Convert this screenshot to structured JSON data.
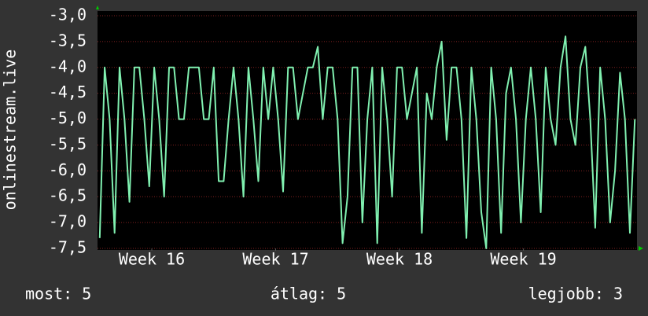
{
  "chart_data": {
    "type": "line",
    "y_label": "onlinestream.live",
    "x": [
      15.58,
      15.62,
      15.66,
      15.7,
      15.74,
      15.78,
      15.82,
      15.86,
      15.9,
      15.94,
      15.98,
      16.02,
      16.06,
      16.1,
      16.14,
      16.18,
      16.22,
      16.26,
      16.3,
      16.34,
      16.38,
      16.42,
      16.46,
      16.5,
      16.54,
      16.58,
      16.62,
      16.66,
      16.7,
      16.74,
      16.78,
      16.82,
      16.86,
      16.9,
      16.94,
      16.98,
      17.02,
      17.06,
      17.1,
      17.14,
      17.18,
      17.22,
      17.26,
      17.3,
      17.34,
      17.38,
      17.42,
      17.46,
      17.5,
      17.54,
      17.58,
      17.62,
      17.66,
      17.7,
      17.74,
      17.78,
      17.82,
      17.86,
      17.9,
      17.94,
      17.98,
      18.02,
      18.06,
      18.1,
      18.14,
      18.18,
      18.22,
      18.26,
      18.3,
      18.34,
      18.38,
      18.42,
      18.46,
      18.5,
      18.54,
      18.58,
      18.62,
      18.66,
      18.7,
      18.74,
      18.78,
      18.82,
      18.86,
      18.9,
      18.94,
      18.98,
      19.02,
      19.06,
      19.1,
      19.14,
      19.18,
      19.22,
      19.26,
      19.3,
      19.34,
      19.38,
      19.42,
      19.46,
      19.5,
      19.54,
      19.58,
      19.62,
      19.66,
      19.7,
      19.74,
      19.78,
      19.82,
      19.86,
      19.9
    ],
    "series": [
      {
        "color": "#80f0b0",
        "values": [
          -7.3,
          -4.0,
          -5.0,
          -7.2,
          -4.0,
          -5.0,
          -6.6,
          -4.0,
          -4.0,
          -5.0,
          -6.3,
          -4.0,
          -5.0,
          -6.5,
          -4.0,
          -4.0,
          -5.0,
          -5.0,
          -4.0,
          -4.0,
          -4.0,
          -5.0,
          -5.0,
          -4.0,
          -6.2,
          -6.2,
          -5.0,
          -4.0,
          -5.0,
          -6.5,
          -4.0,
          -5.0,
          -6.2,
          -4.0,
          -5.0,
          -4.0,
          -5.0,
          -6.4,
          -4.0,
          -4.0,
          -5.0,
          -4.5,
          -4.0,
          -4.0,
          -3.6,
          -5.0,
          -4.0,
          -4.0,
          -5.0,
          -7.4,
          -6.5,
          -4.0,
          -4.0,
          -7.0,
          -5.0,
          -4.0,
          -7.4,
          -4.0,
          -5.0,
          -6.5,
          -4.0,
          -4.0,
          -5.0,
          -4.5,
          -4.0,
          -7.2,
          -4.5,
          -5.0,
          -4.0,
          -3.5,
          -5.4,
          -4.0,
          -4.0,
          -5.0,
          -7.3,
          -4.0,
          -5.0,
          -6.8,
          -7.5,
          -4.0,
          -5.0,
          -7.2,
          -4.5,
          -4.0,
          -5.0,
          -7.0,
          -5.0,
          -4.0,
          -5.0,
          -6.8,
          -4.0,
          -5.0,
          -5.5,
          -4.0,
          -3.4,
          -5.0,
          -5.5,
          -4.0,
          -3.6,
          -5.0,
          -7.1,
          -4.0,
          -5.0,
          -7.0,
          -6.0,
          -4.1,
          -5.0,
          -7.2,
          -5.0
        ]
      }
    ],
    "xlim": [
      15.562,
      19.917
    ],
    "xticks": [
      {
        "value": 16,
        "label": "Week 16"
      },
      {
        "value": 17,
        "label": "Week 17"
      },
      {
        "value": 18,
        "label": "Week 18"
      },
      {
        "value": 19,
        "label": "Week 19"
      }
    ],
    "ylim": [
      -7.5,
      -3.0
    ],
    "yticks": [
      {
        "value": -3.0,
        "label": "-3,0"
      },
      {
        "value": -3.5,
        "label": "-3,5"
      },
      {
        "value": -4.0,
        "label": "-4,0"
      },
      {
        "value": -4.5,
        "label": "-4,5"
      },
      {
        "value": -5.0,
        "label": "-5,0"
      },
      {
        "value": -5.5,
        "label": "-5,5"
      },
      {
        "value": -6.0,
        "label": "-6,0"
      },
      {
        "value": -6.5,
        "label": "-6,5"
      },
      {
        "value": -7.0,
        "label": "-7,0"
      },
      {
        "value": -7.5,
        "label": "-7,5"
      }
    ],
    "grid": true,
    "stats": [
      "most: 5",
      "átlag: 5",
      "legjobb: 3"
    ]
  }
}
